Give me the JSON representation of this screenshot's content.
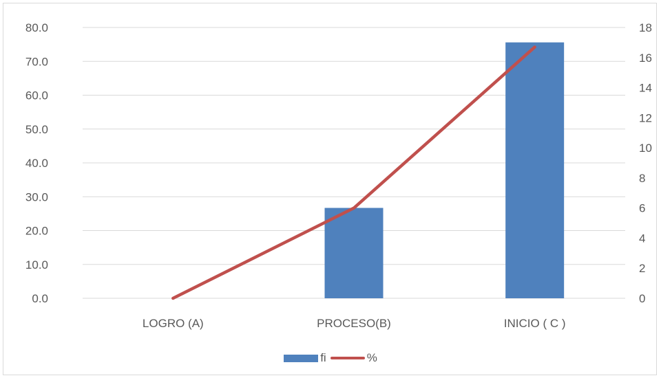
{
  "chart_data": {
    "type": "bar",
    "categories": [
      "LOGRO (A)",
      "PROCESO(B)",
      "INICIO ( C )"
    ],
    "series": [
      {
        "name": "fi",
        "type": "bar",
        "axis": "left",
        "values": [
          0.0,
          26.7,
          75.6
        ],
        "color": "#4f81bd"
      },
      {
        "name": "%",
        "type": "line",
        "axis": "right",
        "values": [
          0,
          6,
          16.7
        ],
        "color": "#c0504d"
      }
    ],
    "y_left": {
      "min": 0,
      "max": 80,
      "step": 10,
      "tick_labels": [
        "0.0",
        "10.0",
        "20.0",
        "30.0",
        "40.0",
        "50.0",
        "60.0",
        "70.0",
        "80.0"
      ]
    },
    "y_right": {
      "min": 0,
      "max": 18,
      "step": 2,
      "tick_labels": [
        "0",
        "2",
        "4",
        "6",
        "8",
        "10",
        "12",
        "14",
        "16",
        "18"
      ]
    },
    "grid": true,
    "legend_position": "bottom",
    "gridline_color": "#d9d9d9"
  }
}
